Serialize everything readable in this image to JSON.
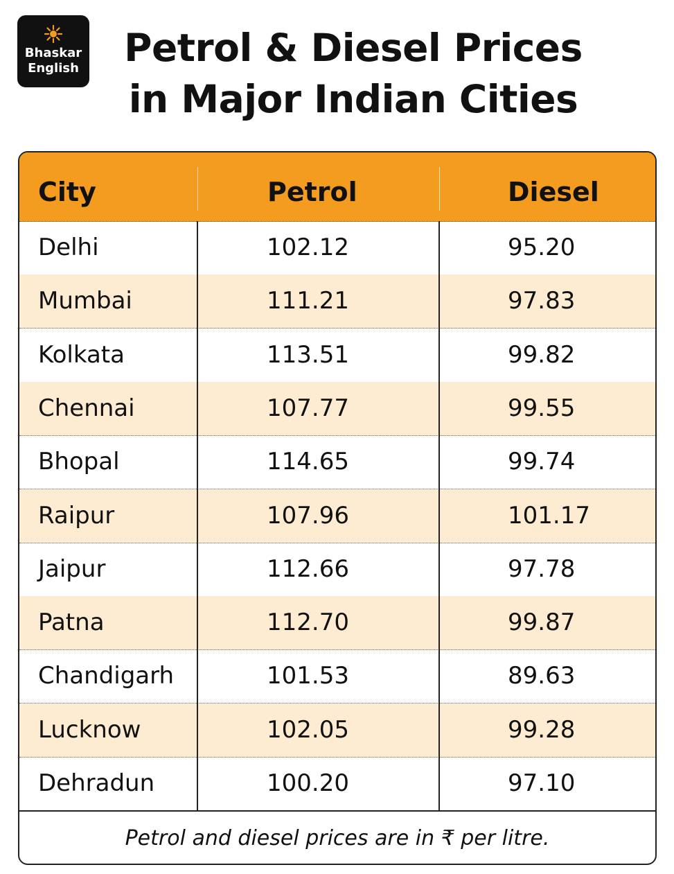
{
  "brand": {
    "line1": "Bhaskar",
    "line2": "English"
  },
  "header": {
    "title_line1": "Petrol & Diesel Prices",
    "title_line2": "in Major Indian Cities"
  },
  "colors": {
    "accent": "#f39c1f",
    "row_alt": "#fdebd2",
    "logo_bg": "#111111"
  },
  "table": {
    "columns": [
      "City",
      "Petrol",
      "Diesel"
    ],
    "rows": [
      {
        "city": "Delhi",
        "petrol": "102.12",
        "diesel": "95.20"
      },
      {
        "city": "Mumbai",
        "petrol": "111.21",
        "diesel": "97.83"
      },
      {
        "city": "Kolkata",
        "petrol": "113.51",
        "diesel": "99.82"
      },
      {
        "city": "Chennai",
        "petrol": "107.77",
        "diesel": "99.55"
      },
      {
        "city": "Bhopal",
        "petrol": "114.65",
        "diesel": "99.74"
      },
      {
        "city": "Raipur",
        "petrol": "107.96",
        "diesel": "101.17"
      },
      {
        "city": "Jaipur",
        "petrol": "112.66",
        "diesel": "97.78"
      },
      {
        "city": "Patna",
        "petrol": "112.70",
        "diesel": "99.87"
      },
      {
        "city": "Chandigarh",
        "petrol": "101.53",
        "diesel": "89.63"
      },
      {
        "city": "Lucknow",
        "petrol": "102.05",
        "diesel": "99.28"
      },
      {
        "city": "Dehradun",
        "petrol": "100.20",
        "diesel": "97.10"
      }
    ],
    "footnote": "Petrol and diesel prices are in ₹ per litre."
  }
}
